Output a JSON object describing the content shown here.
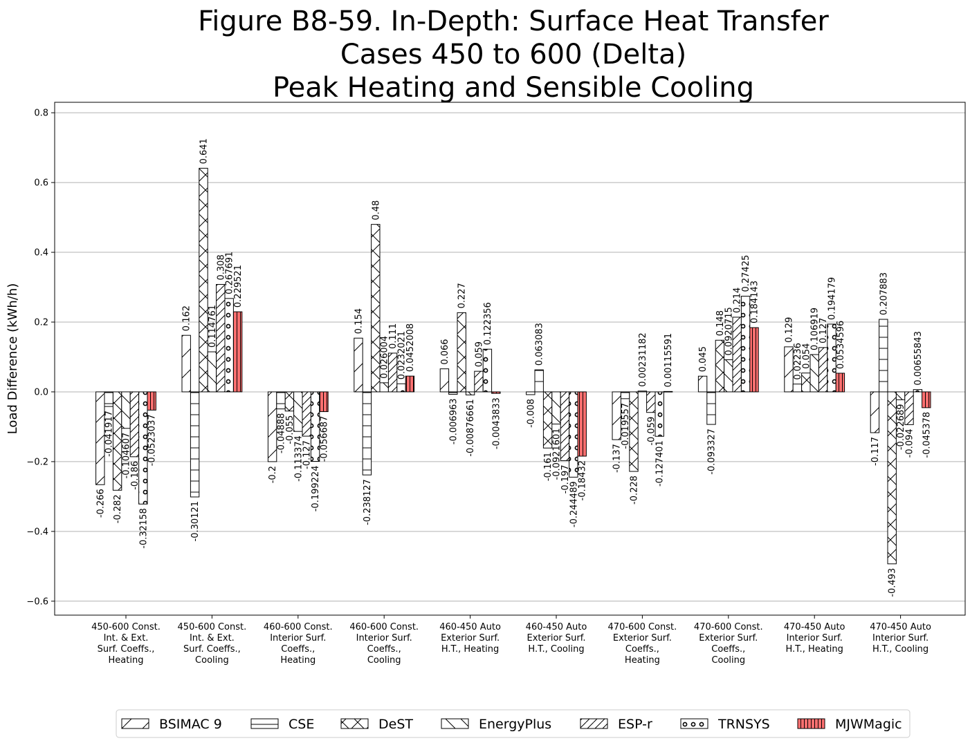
{
  "chart_data": {
    "type": "bar",
    "title_lines": [
      "Figure B8-59. In-Depth: Surface Heat Transfer",
      "Cases 450 to 600 (Delta)",
      "Peak Heating and Sensible Cooling"
    ],
    "ylabel": "Load Difference (kWh/h)",
    "ylim": [
      -0.64,
      0.83
    ],
    "yticks": [
      -0.6,
      -0.4,
      -0.2,
      0.0,
      0.2,
      0.4,
      0.6,
      0.8
    ],
    "ytick_labels": [
      "−0.6",
      "−0.4",
      "−0.2",
      "0.0",
      "0.2",
      "0.4",
      "0.6",
      "0.8"
    ],
    "grid": "horizontal",
    "legend_position": "bottom",
    "categories": [
      [
        "450-600 Const.",
        "Int. & Ext.",
        "Surf. Coeffs.,",
        "Heating"
      ],
      [
        "450-600 Const.",
        "Int. & Ext.",
        "Surf. Coeffs.,",
        "Cooling"
      ],
      [
        "460-600 Const.",
        "Interior Surf.",
        "Coeffs.,",
        "Heating"
      ],
      [
        "460-600 Const.",
        "Interior Surf.",
        "Coeffs.,",
        "Cooling"
      ],
      [
        "460-450 Auto",
        "Exterior Surf.",
        "H.T., Heating"
      ],
      [
        "460-450 Auto",
        "Exterior Surf.",
        "H.T., Cooling"
      ],
      [
        "470-600 Const.",
        "Exterior Surf.",
        "Coeffs.,",
        "Heating"
      ],
      [
        "470-600 Const.",
        "Exterior Surf.",
        "Coeffs.,",
        "Cooling"
      ],
      [
        "470-450 Auto",
        "Interior Surf.",
        "H.T., Heating"
      ],
      [
        "470-450 Auto",
        "Interior Surf.",
        "H.T., Cooling"
      ]
    ],
    "series": [
      {
        "name": "BSIMAC 9",
        "pattern": "single-diagonal",
        "fill": "#ffffff",
        "values": [
          -0.266,
          0.162,
          -0.2,
          0.154,
          0.066,
          -0.008,
          -0.137,
          0.045,
          0.129,
          -0.117
        ],
        "labels": [
          "-0.266",
          "0.162",
          "-0.2",
          "0.154",
          "0.066",
          "-0.008",
          "-0.137",
          "0.045",
          "0.129",
          "-0.117"
        ]
      },
      {
        "name": "CSE",
        "pattern": "horizontal-lines",
        "fill": "#ffffff",
        "values": [
          -0.041917,
          -0.30121,
          -0.04888,
          -0.238127,
          -0.006963,
          0.063083,
          -0.019557,
          -0.093327,
          0.02236,
          0.207883
        ],
        "labels": [
          "-0.041917",
          "-0.30121",
          "-0.04888",
          "-0.238127",
          "-0.006963",
          "0.063083",
          "-0.019557",
          "-0.093327",
          "0.02236",
          "0.207883"
        ]
      },
      {
        "name": "DeST",
        "pattern": "cross",
        "fill": "#ffffff",
        "values": [
          -0.282,
          0.641,
          -0.055,
          0.48,
          0.227,
          -0.161,
          -0.228,
          0.148,
          0.054,
          -0.493
        ],
        "labels": [
          "-0.282",
          "0.641",
          "-0.055",
          "0.48",
          "0.227",
          "-0.161",
          "-0.228",
          "0.148",
          "0.054",
          "-0.493"
        ]
      },
      {
        "name": "EnergyPlus",
        "pattern": "back-diagonal",
        "fill": "#ffffff",
        "values": [
          -0.104607,
          0.114761,
          -0.113374,
          0.026004,
          -0.00876661,
          -0.0921601,
          0.00231182,
          0.0920715,
          0.106919,
          -0.022689
        ],
        "labels": [
          "-0.104607",
          "0.114761",
          "-0.113374",
          "0.026004",
          "-0.00876661",
          "-0.0921601",
          "0.00231182",
          "0.0920715",
          "0.106919",
          "-0.022689"
        ]
      },
      {
        "name": "ESP-r",
        "pattern": "double-diagonal",
        "fill": "#ffffff",
        "values": [
          -0.186,
          0.308,
          -0.127,
          0.111,
          0.059,
          -0.197,
          -0.059,
          0.214,
          0.127,
          -0.094
        ],
        "labels": [
          "-0.186",
          "0.308",
          "-0.127",
          "0.111",
          "0.059",
          "-0.197",
          "-0.059",
          "0.214",
          "0.127",
          "-0.094"
        ]
      },
      {
        "name": "TRNSYS",
        "pattern": "circles",
        "fill": "#ffffff",
        "values": [
          -0.32158,
          0.267691,
          -0.199224,
          0.0232021,
          0.122356,
          -0.244489,
          -0.127401,
          0.27425,
          0.194179,
          0.00655843
        ],
        "labels": [
          "-0.32158",
          "0.267691",
          "-0.199224",
          "0.0232021",
          "0.122356",
          "-0.244489",
          "-0.127401",
          "0.27425",
          "0.194179",
          "0.00655843"
        ]
      },
      {
        "name": "MJWMagic",
        "pattern": "vertical-lines",
        "fill": "#ff7070",
        "values": [
          -0.0523037,
          0.229521,
          -0.056687,
          0.0452008,
          -0.0043833,
          -0.18432,
          0.00115591,
          0.184143,
          0.0534596,
          -0.045378
        ],
        "labels": [
          "-0.0523037",
          "0.229521",
          "-0.056687",
          "0.0452008",
          "-0.0043833",
          "-0.18432",
          "0.00115591",
          "0.184143",
          "0.0534596",
          "-0.045378"
        ]
      }
    ]
  }
}
